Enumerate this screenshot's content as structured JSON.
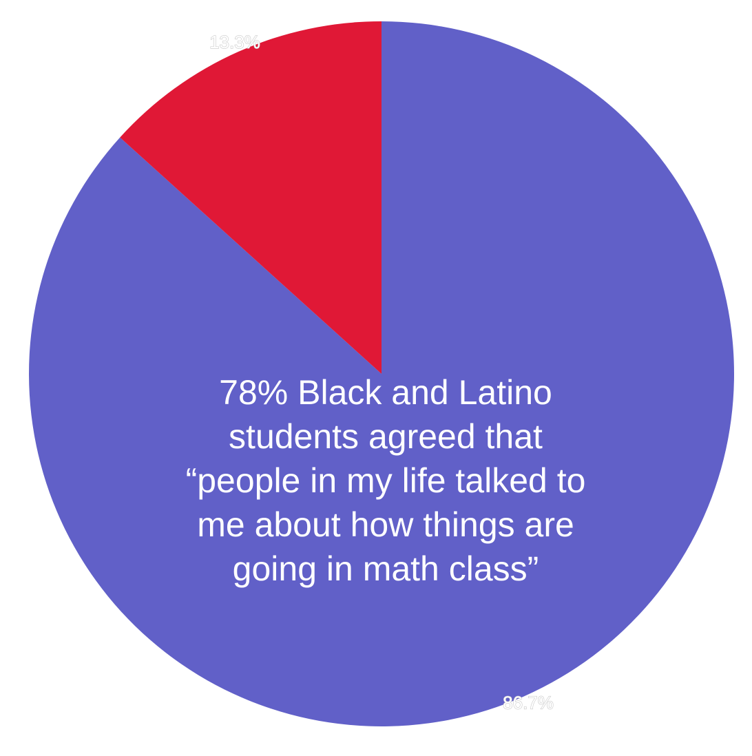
{
  "chart_data": {
    "type": "pie",
    "title": "",
    "slices": [
      {
        "label": "86.7%",
        "value": 86.7,
        "color": "#6160C8"
      },
      {
        "label": "13.3%",
        "value": 13.3,
        "color": "#E01836"
      }
    ],
    "annotation_lines": [
      "78% Black and Latino",
      "students agreed that",
      "“people in my life talked to",
      "me about how things are",
      "going in math class”"
    ],
    "legend": "none"
  }
}
